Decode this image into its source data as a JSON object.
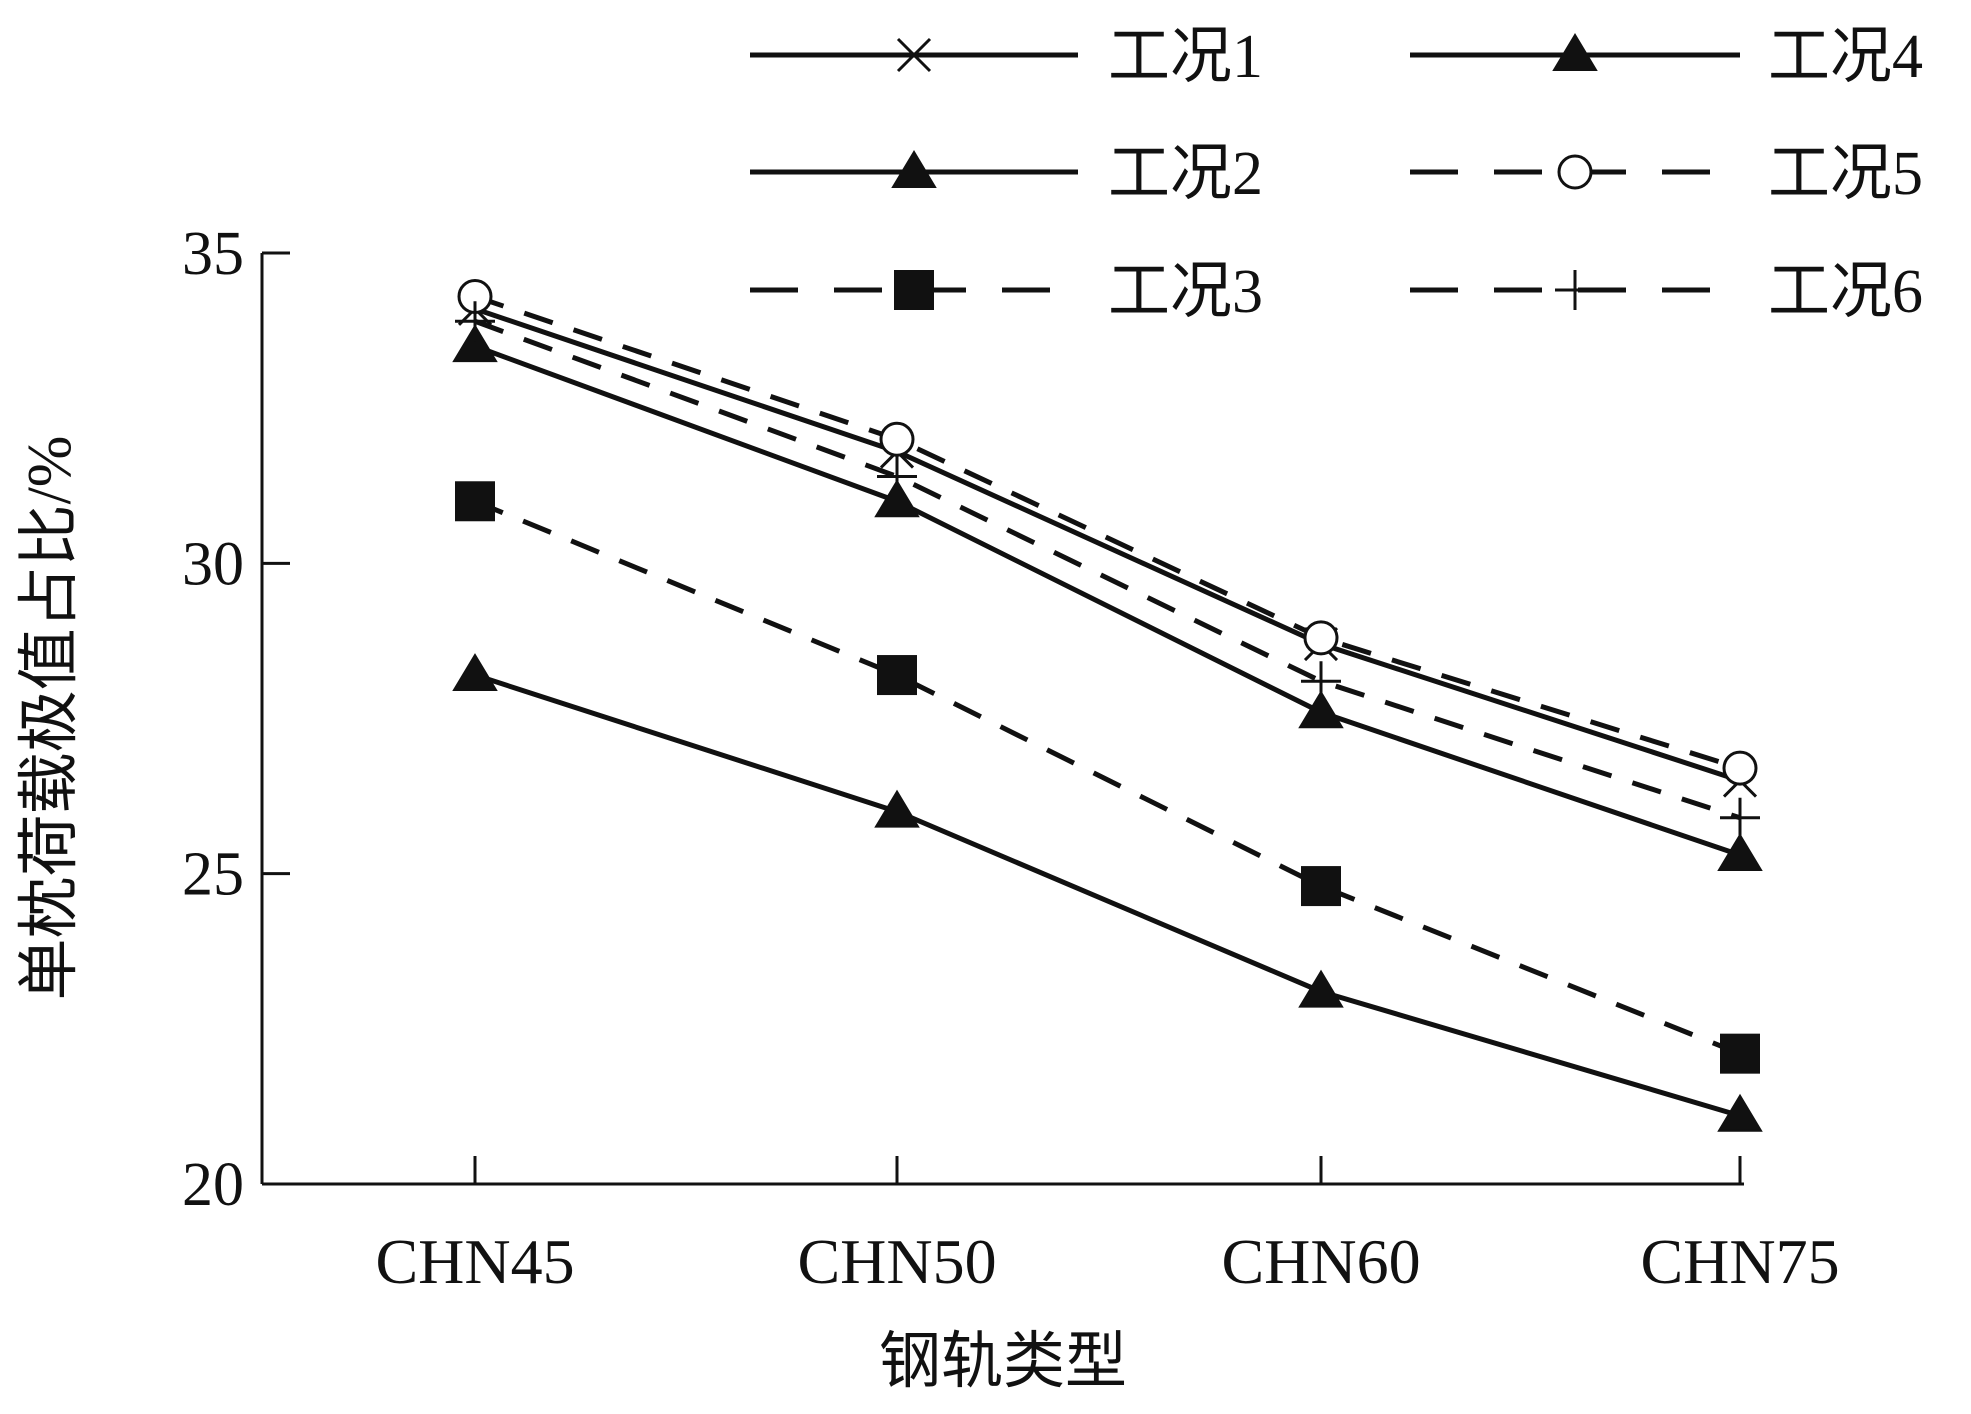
{
  "chart_data": {
    "type": "line",
    "xlabel": "钢轨类型",
    "ylabel": "单枕荷载极值占比/%",
    "categories": [
      "CHN45",
      "CHN50",
      "CHN60",
      "CHN75"
    ],
    "ylim": [
      20,
      35
    ],
    "yticks": [
      "20",
      "25",
      "30",
      "35"
    ],
    "grid": false,
    "legend_position": "top",
    "series": [
      {
        "name": "工况1",
        "marker": "x",
        "dash": false,
        "values": [
          34.1,
          31.8,
          28.7,
          26.5
        ]
      },
      {
        "name": "工况2",
        "marker": "triangle",
        "dash": false,
        "values": [
          33.5,
          31.0,
          27.6,
          25.3
        ]
      },
      {
        "name": "工况3",
        "marker": "square",
        "dash": true,
        "values": [
          31.0,
          28.2,
          24.8,
          22.1
        ]
      },
      {
        "name": "工况4",
        "marker": "triangle",
        "dash": false,
        "values": [
          28.2,
          26.0,
          23.1,
          21.1
        ]
      },
      {
        "name": "工况5",
        "marker": "circle",
        "dash": true,
        "values": [
          34.3,
          32.0,
          28.8,
          26.7
        ]
      },
      {
        "name": "工况6",
        "marker": "plus",
        "dash": true,
        "values": [
          33.9,
          31.4,
          28.1,
          25.9
        ]
      }
    ]
  }
}
